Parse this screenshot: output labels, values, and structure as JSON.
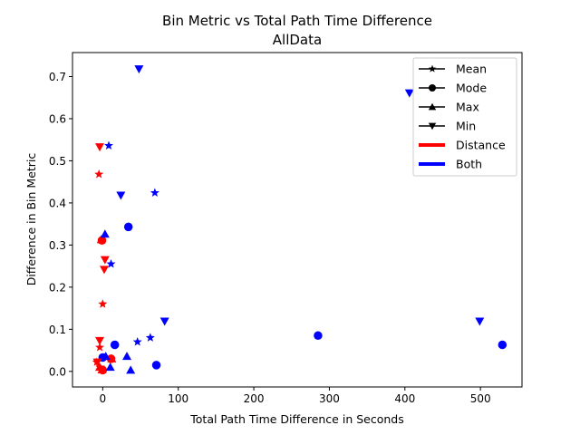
{
  "chart_data": {
    "type": "scatter",
    "title": "Bin Metric vs Total Path Time Difference",
    "subtitle": "AllData",
    "xlabel": "Total Path Time Difference in Seconds",
    "ylabel": "Difference in Bin Metric",
    "xlim": [
      -40,
      555
    ],
    "ylim": [
      -0.037,
      0.757
    ],
    "xticks": [
      0,
      100,
      200,
      300,
      400,
      500
    ],
    "yticks": [
      0.0,
      0.1,
      0.2,
      0.3,
      0.4,
      0.5,
      0.6,
      0.7
    ],
    "xtick_labels": [
      "0",
      "100",
      "200",
      "300",
      "400",
      "500"
    ],
    "ytick_labels": [
      "0.0",
      "0.1",
      "0.2",
      "0.3",
      "0.4",
      "0.5",
      "0.6",
      "0.7"
    ],
    "grid": false,
    "legend_position": "top-right",
    "legend": {
      "markers": [
        {
          "label": "Mean",
          "marker": "star"
        },
        {
          "label": "Mode",
          "marker": "circle"
        },
        {
          "label": "Max",
          "marker": "triangle-up"
        },
        {
          "label": "Min",
          "marker": "triangle-down"
        }
      ],
      "colors": [
        {
          "label": "Distance",
          "color": "#ff0000"
        },
        {
          "label": "Both",
          "color": "#0000ff"
        }
      ]
    },
    "series": [
      {
        "name": "Mean",
        "group": "Distance",
        "marker": "star",
        "color": "#ff0000",
        "points": [
          [
            -5,
            0.468
          ],
          [
            0,
            0.16
          ],
          [
            -4,
            0.057
          ],
          [
            -8,
            0.022
          ],
          [
            -2,
            0.005
          ]
        ]
      },
      {
        "name": "Mean",
        "group": "Both",
        "marker": "star",
        "color": "#0000ff",
        "points": [
          [
            8,
            0.536
          ],
          [
            69,
            0.424
          ],
          [
            11,
            0.255
          ],
          [
            63,
            0.08
          ],
          [
            46,
            0.07
          ]
        ]
      },
      {
        "name": "Mode",
        "group": "Distance",
        "marker": "circle",
        "color": "#ff0000",
        "points": [
          [
            -1,
            0.311
          ],
          [
            11,
            0.03
          ],
          [
            0,
            0.003
          ]
        ]
      },
      {
        "name": "Mode",
        "group": "Both",
        "marker": "circle",
        "color": "#0000ff",
        "points": [
          [
            34,
            0.343
          ],
          [
            16,
            0.063
          ],
          [
            0,
            0.033
          ],
          [
            71,
            0.015
          ],
          [
            285,
            0.085
          ],
          [
            529,
            0.063
          ]
        ]
      },
      {
        "name": "Max",
        "group": "Distance",
        "marker": "triangle-up",
        "color": "#ff0000",
        "points": [
          [
            -2,
            0.313
          ],
          [
            12,
            0.03
          ],
          [
            -4,
            0.01
          ],
          [
            -1,
            0.004
          ]
        ]
      },
      {
        "name": "Max",
        "group": "Both",
        "marker": "triangle-up",
        "color": "#0000ff",
        "points": [
          [
            3,
            0.326
          ],
          [
            4,
            0.036
          ],
          [
            32,
            0.036
          ],
          [
            10,
            0.01
          ],
          [
            37,
            0.003
          ]
        ]
      },
      {
        "name": "Min",
        "group": "Distance",
        "marker": "triangle-down",
        "color": "#ff0000",
        "points": [
          [
            -4,
            0.533
          ],
          [
            3,
            0.265
          ],
          [
            2,
            0.242
          ],
          [
            -4,
            0.073
          ],
          [
            -7,
            0.022
          ],
          [
            -3,
            0.005
          ]
        ]
      },
      {
        "name": "Min",
        "group": "Both",
        "marker": "triangle-down",
        "color": "#0000ff",
        "points": [
          [
            48,
            0.718
          ],
          [
            24,
            0.418
          ],
          [
            82,
            0.119
          ],
          [
            406,
            0.661
          ],
          [
            499,
            0.119
          ]
        ]
      }
    ]
  }
}
